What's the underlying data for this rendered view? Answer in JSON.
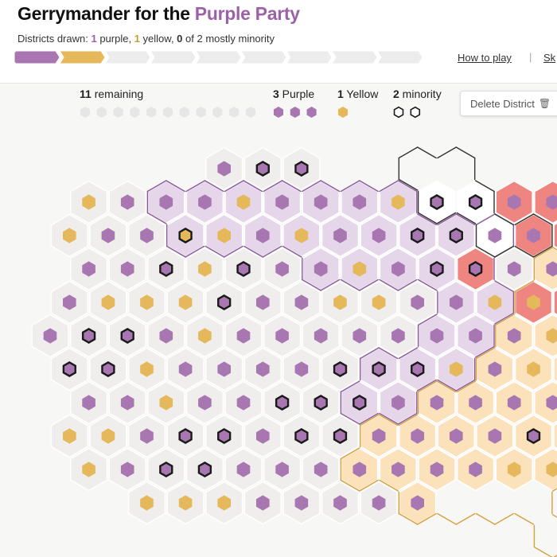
{
  "header": {
    "title_prefix": "Gerrymander for the ",
    "title_accent": "Purple Party",
    "districts_label": "Districts drawn: ",
    "purple_count": "1",
    "purple_word": " purple, ",
    "yellow_count": "1",
    "yellow_word": " yellow, ",
    "minority_count": "0",
    "minority_word": " of 2 mostly minority",
    "how_to_play": "How to play",
    "separator": "|",
    "skip": "Sk"
  },
  "progress": {
    "segments": [
      "purple",
      "yellow",
      "empty",
      "empty",
      "empty",
      "empty",
      "empty",
      "empty",
      "empty"
    ]
  },
  "legend": {
    "remaining_count": "11",
    "remaining_word": " remaining",
    "remaining_dots": 11,
    "purple_count": "3",
    "purple_word": " Purple",
    "purple_dots": 3,
    "yellow_count": "1",
    "yellow_word": " Yellow",
    "yellow_dots": 1,
    "minority_count": "2",
    "minority_word": " minority",
    "minority_dots": 2
  },
  "delete_button": {
    "label": "Delete District",
    "icon": "trash-icon"
  },
  "colors": {
    "purple": "#a877b1",
    "yellow": "#e5b85b",
    "minority_outline": "#1a1a1a",
    "cell": "#efeeec",
    "purple_district": "#e5d6ea",
    "yellow_district": "#fbe2ba",
    "red_region": "#ef8580",
    "legend_dot_empty": "#e6e6e6",
    "progress_purple": "#a877b1",
    "progress_yellow": "#e5b85b",
    "progress_empty": "#ececec"
  },
  "board": {
    "rows": [
      {
        "start": 9,
        "cells": "PmM-------------MyYm"
      },
      {
        "start": 2,
        "cells": "YPPPYPPPYmmPPRR"
      },
      {
        "start": 1,
        "cells": "YPPyYPYPPmmPPRRRR"
      },
      {
        "start": 2,
        "cells": "PPmYmPPYPmmPPPPP"
      },
      {
        "start": 1,
        "cells": "PYYYmPPYYPPYYRRR"
      },
      {
        "start": 0,
        "cells": "PmmPYPPPPPPPPYPP"
      },
      {
        "start": 1,
        "cells": "mmYPPPPmmmYPYmYP"
      },
      {
        "start": 2,
        "cells": "PPYPPmmmPPPPPmP"
      },
      {
        "start": 1,
        "cells": "YYPmmPmmPPPPmYY"
      },
      {
        "start": 2,
        "cells": "YPmmPPPPPPPYY"
      },
      {
        "start": 5,
        "cells": "YYYPPPPP"
      }
    ]
  }
}
